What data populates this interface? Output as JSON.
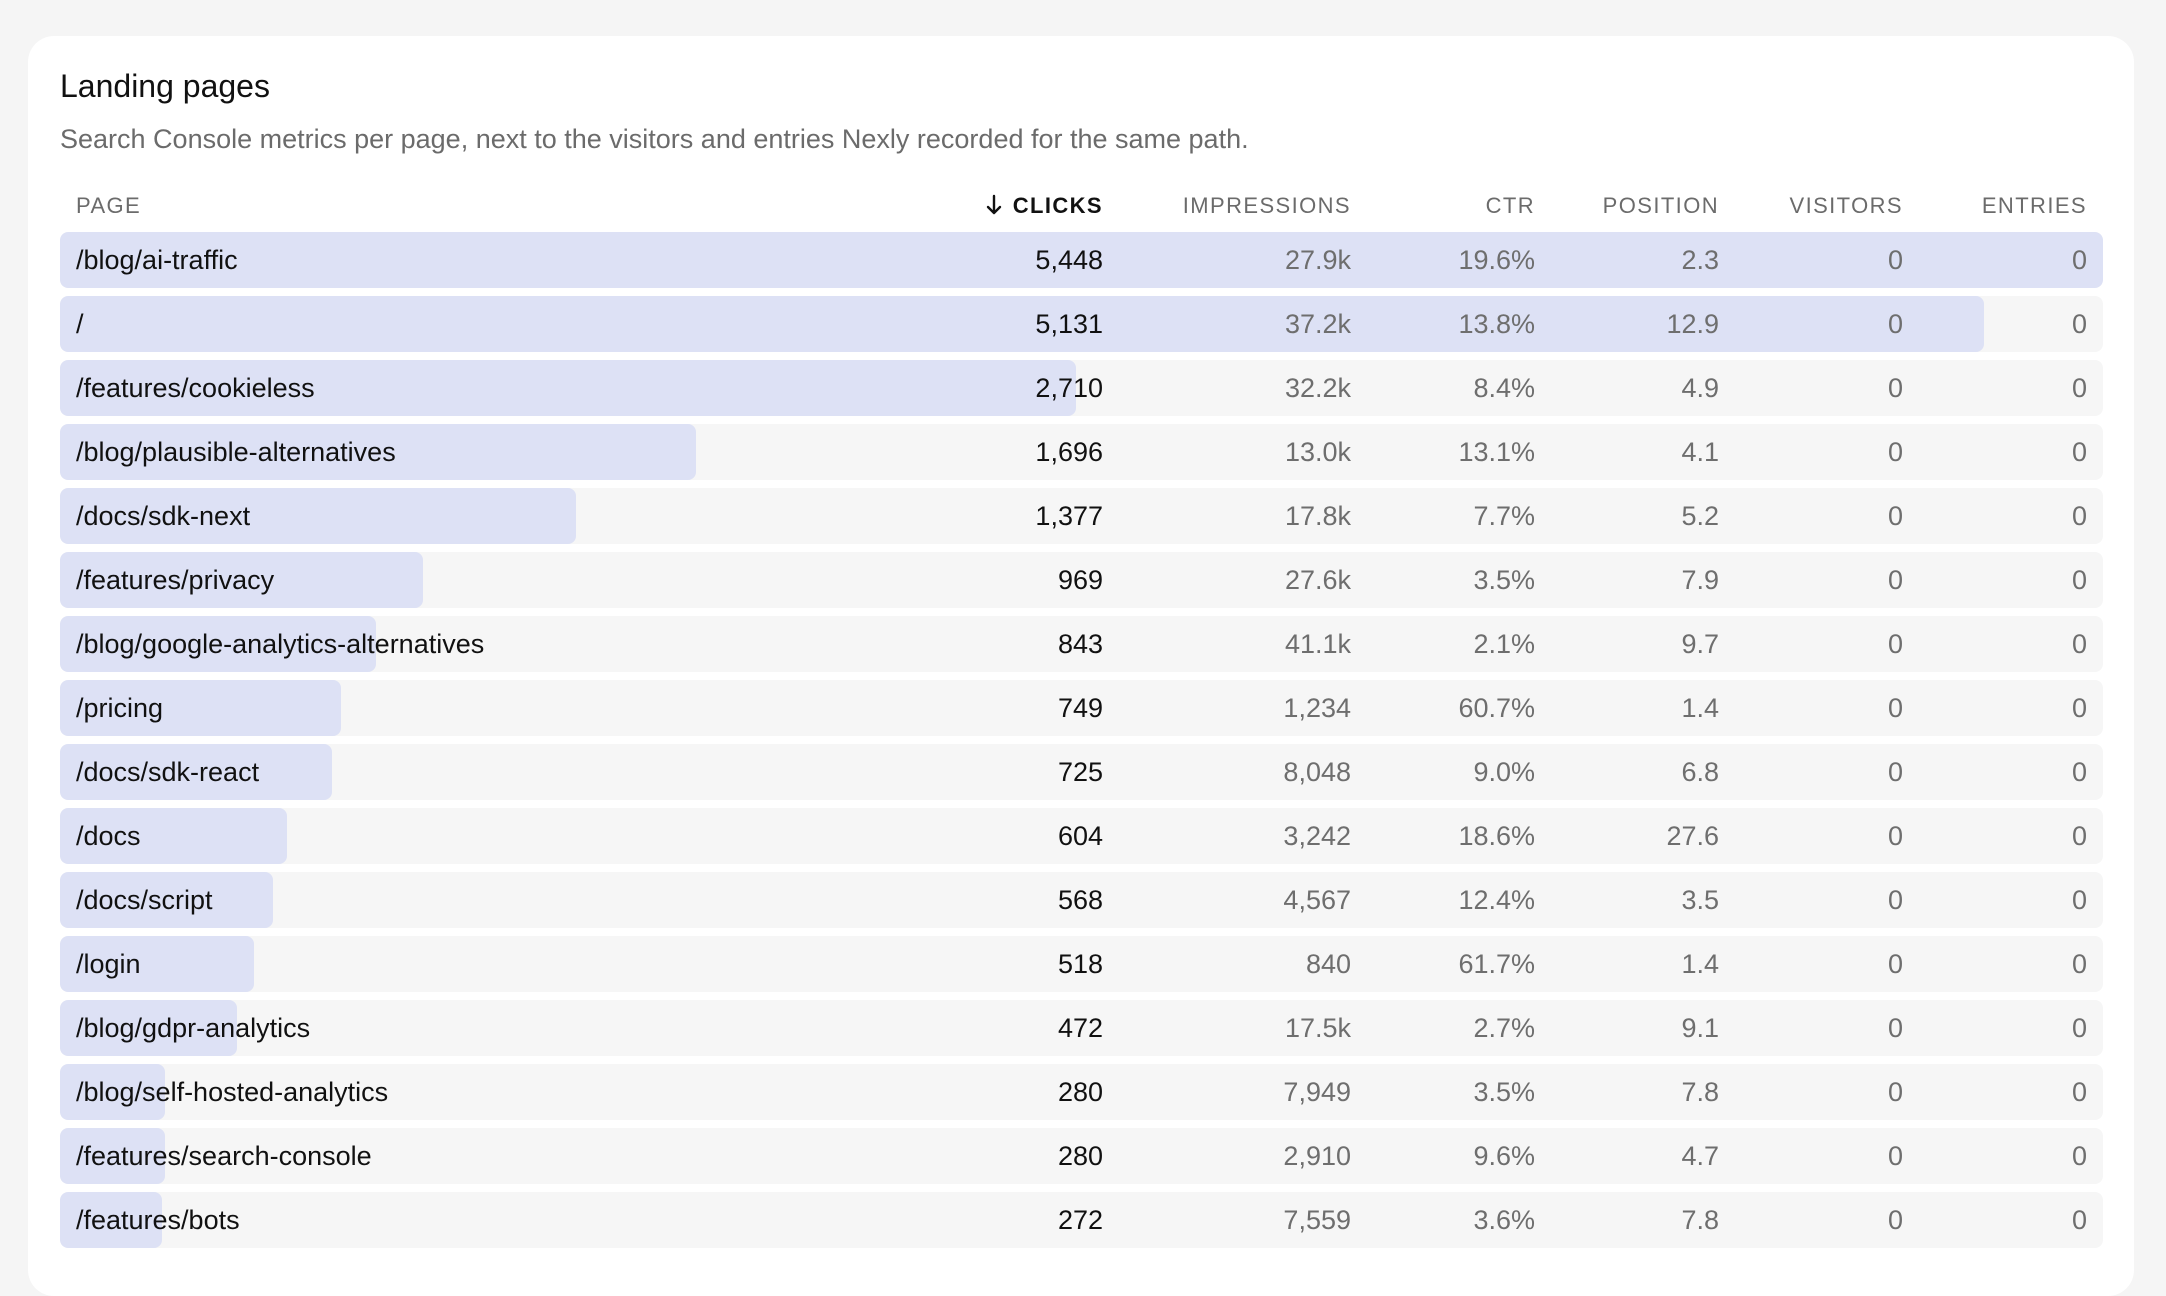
{
  "card": {
    "title": "Landing pages",
    "subtitle": "Search Console metrics per page, next to the visitors and entries Nexly recorded for the same path."
  },
  "columns": {
    "page": "PAGE",
    "clicks": "CLICKS",
    "impressions": "IMPRESSIONS",
    "ctr": "CTR",
    "position": "POSITION",
    "visitors": "VISITORS",
    "entries": "ENTRIES"
  },
  "sort": {
    "column": "clicks",
    "direction": "desc",
    "icon": "arrow-down-icon"
  },
  "colors": {
    "bar": "#dde1f5",
    "row": "#f6f6f6",
    "card": "#ffffff",
    "background": "#f5f5f5"
  },
  "rows": [
    {
      "page": "/blog/ai-traffic",
      "clicks": "5,448",
      "impressions": "27.9k",
      "ctr": "19.6%",
      "position": "2.3",
      "visitors": "0",
      "entries": "0"
    },
    {
      "page": "/",
      "clicks": "5,131",
      "impressions": "37.2k",
      "ctr": "13.8%",
      "position": "12.9",
      "visitors": "0",
      "entries": "0"
    },
    {
      "page": "/features/cookieless",
      "clicks": "2,710",
      "impressions": "32.2k",
      "ctr": "8.4%",
      "position": "4.9",
      "visitors": "0",
      "entries": "0"
    },
    {
      "page": "/blog/plausible-alternatives",
      "clicks": "1,696",
      "impressions": "13.0k",
      "ctr": "13.1%",
      "position": "4.1",
      "visitors": "0",
      "entries": "0"
    },
    {
      "page": "/docs/sdk-next",
      "clicks": "1,377",
      "impressions": "17.8k",
      "ctr": "7.7%",
      "position": "5.2",
      "visitors": "0",
      "entries": "0"
    },
    {
      "page": "/features/privacy",
      "clicks": "969",
      "impressions": "27.6k",
      "ctr": "3.5%",
      "position": "7.9",
      "visitors": "0",
      "entries": "0"
    },
    {
      "page": "/blog/google-analytics-alternatives",
      "clicks": "843",
      "impressions": "41.1k",
      "ctr": "2.1%",
      "position": "9.7",
      "visitors": "0",
      "entries": "0"
    },
    {
      "page": "/pricing",
      "clicks": "749",
      "impressions": "1,234",
      "ctr": "60.7%",
      "position": "1.4",
      "visitors": "0",
      "entries": "0"
    },
    {
      "page": "/docs/sdk-react",
      "clicks": "725",
      "impressions": "8,048",
      "ctr": "9.0%",
      "position": "6.8",
      "visitors": "0",
      "entries": "0"
    },
    {
      "page": "/docs",
      "clicks": "604",
      "impressions": "3,242",
      "ctr": "18.6%",
      "position": "27.6",
      "visitors": "0",
      "entries": "0"
    },
    {
      "page": "/docs/script",
      "clicks": "568",
      "impressions": "4,567",
      "ctr": "12.4%",
      "position": "3.5",
      "visitors": "0",
      "entries": "0"
    },
    {
      "page": "/login",
      "clicks": "518",
      "impressions": "840",
      "ctr": "61.7%",
      "position": "1.4",
      "visitors": "0",
      "entries": "0"
    },
    {
      "page": "/blog/gdpr-analytics",
      "clicks": "472",
      "impressions": "17.5k",
      "ctr": "2.7%",
      "position": "9.1",
      "visitors": "0",
      "entries": "0"
    },
    {
      "page": "/blog/self-hosted-analytics",
      "clicks": "280",
      "impressions": "7,949",
      "ctr": "3.5%",
      "position": "7.8",
      "visitors": "0",
      "entries": "0"
    },
    {
      "page": "/features/search-console",
      "clicks": "280",
      "impressions": "2,910",
      "ctr": "9.6%",
      "position": "4.7",
      "visitors": "0",
      "entries": "0"
    },
    {
      "page": "/features/bots",
      "clicks": "272",
      "impressions": "7,559",
      "ctr": "3.6%",
      "position": "7.8",
      "visitors": "0",
      "entries": "0"
    }
  ]
}
